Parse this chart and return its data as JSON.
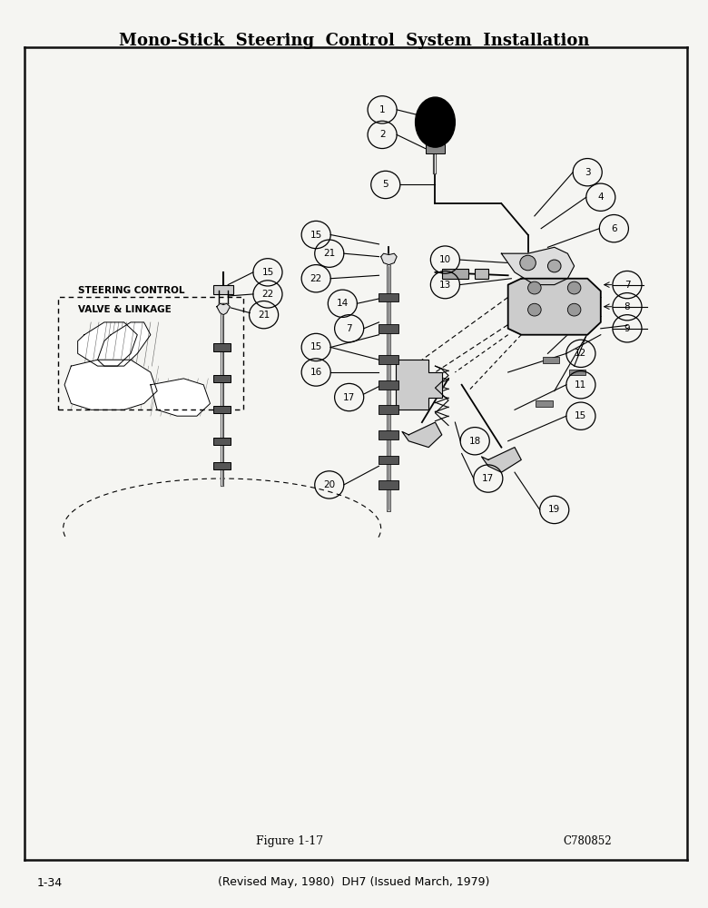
{
  "title": "Mono-Stick  Steering  Control  System  Installation",
  "figure_label": "Figure 1-17",
  "part_number": "C780852",
  "page_number": "1-34",
  "footer_text": "(Revised May, 1980)  DH7 (Issued March, 1979)",
  "steering_label_line1": "STEERING CONTROL",
  "steering_label_line2": "VALVE & LINKAGE",
  "bg_color": "#f5f5f2",
  "title_fontsize": 13,
  "border_color": "#111111"
}
